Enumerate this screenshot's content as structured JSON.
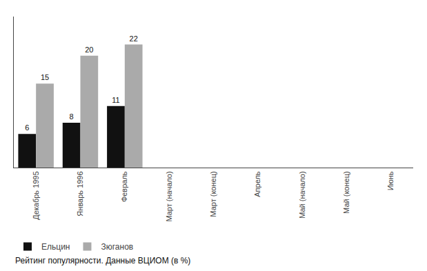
{
  "chart_data": {
    "type": "bar",
    "categories": [
      "Декабрь 1995",
      "Январь 1996",
      "Февраль",
      "Март (начало)",
      "Март (конец)",
      "Апрель",
      "Май (начало)",
      "Май (конец)",
      "Июнь"
    ],
    "series": [
      {
        "name": "Ельцин",
        "color": "#111111",
        "values": [
          6,
          8,
          11,
          null,
          null,
          null,
          null,
          null,
          null
        ]
      },
      {
        "name": "Зюганов",
        "color": "#aaaaaa",
        "values": [
          15,
          20,
          22,
          null,
          null,
          null,
          null,
          null,
          null
        ]
      }
    ],
    "annotations": [
      "Рейтинг популярности. Данные ВЦИОМ (в %)"
    ],
    "ylim": [
      0,
      27
    ],
    "yticks": [],
    "grid": false,
    "legend": "bottom",
    "data_labels": true,
    "tick_labels": "x"
  }
}
